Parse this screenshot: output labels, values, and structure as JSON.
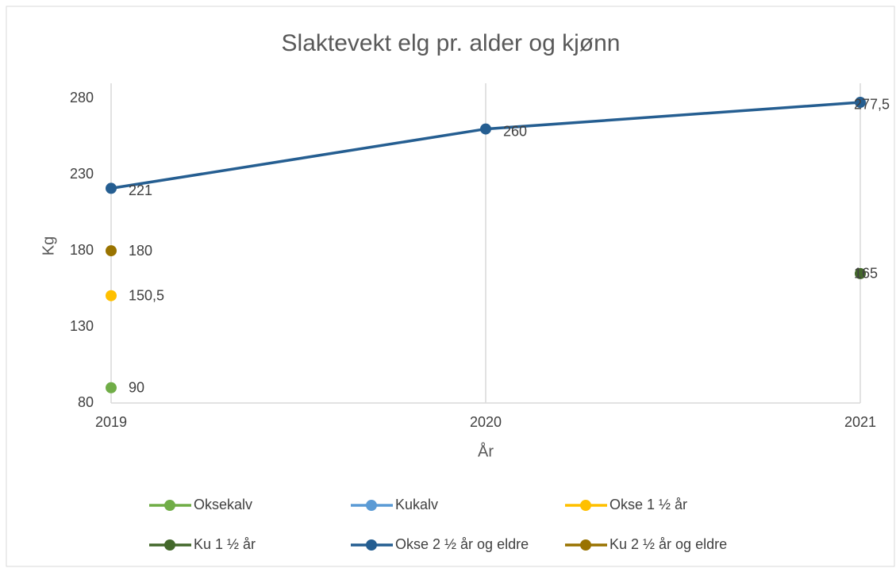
{
  "chart_data": {
    "type": "line",
    "title": "Slaktevekt elg pr. alder og kjønn",
    "x_label": "År",
    "y_label": "Kg",
    "x": [
      2019,
      2020,
      2021
    ],
    "xlim": [
      2019,
      2021
    ],
    "xticks": [
      2019,
      2020,
      2021
    ],
    "ylim": [
      80,
      290
    ],
    "yticks": [
      80,
      130,
      180,
      230,
      280
    ],
    "grid": "x",
    "legend": "bottom",
    "series": [
      {
        "name": "Oksekalv",
        "color": "#70ad47",
        "values": [
          90,
          null,
          null
        ],
        "value_labels": [
          "90",
          null,
          null
        ]
      },
      {
        "name": "Kukalv",
        "color": "#5b9bd5",
        "values": [
          null,
          null,
          null
        ]
      },
      {
        "name": "Okse 1 ½ år",
        "color": "#ffc000",
        "values": [
          150.5,
          null,
          null
        ],
        "value_labels": [
          "150,5",
          null,
          null
        ]
      },
      {
        "name": "Ku 1 ½ år",
        "color": "#43682b",
        "values": [
          null,
          null,
          165
        ],
        "value_labels": [
          null,
          null,
          "165"
        ]
      },
      {
        "name": "Okse 2 ½ år og eldre",
        "color": "#255e91",
        "values": [
          221,
          260,
          277.5
        ],
        "value_labels": [
          "221",
          "260",
          "277,5"
        ]
      },
      {
        "name": "Ku 2 ½ år og eldre",
        "color": "#997300",
        "values": [
          180,
          null,
          null
        ],
        "value_labels": [
          "180",
          null,
          null
        ]
      }
    ]
  }
}
